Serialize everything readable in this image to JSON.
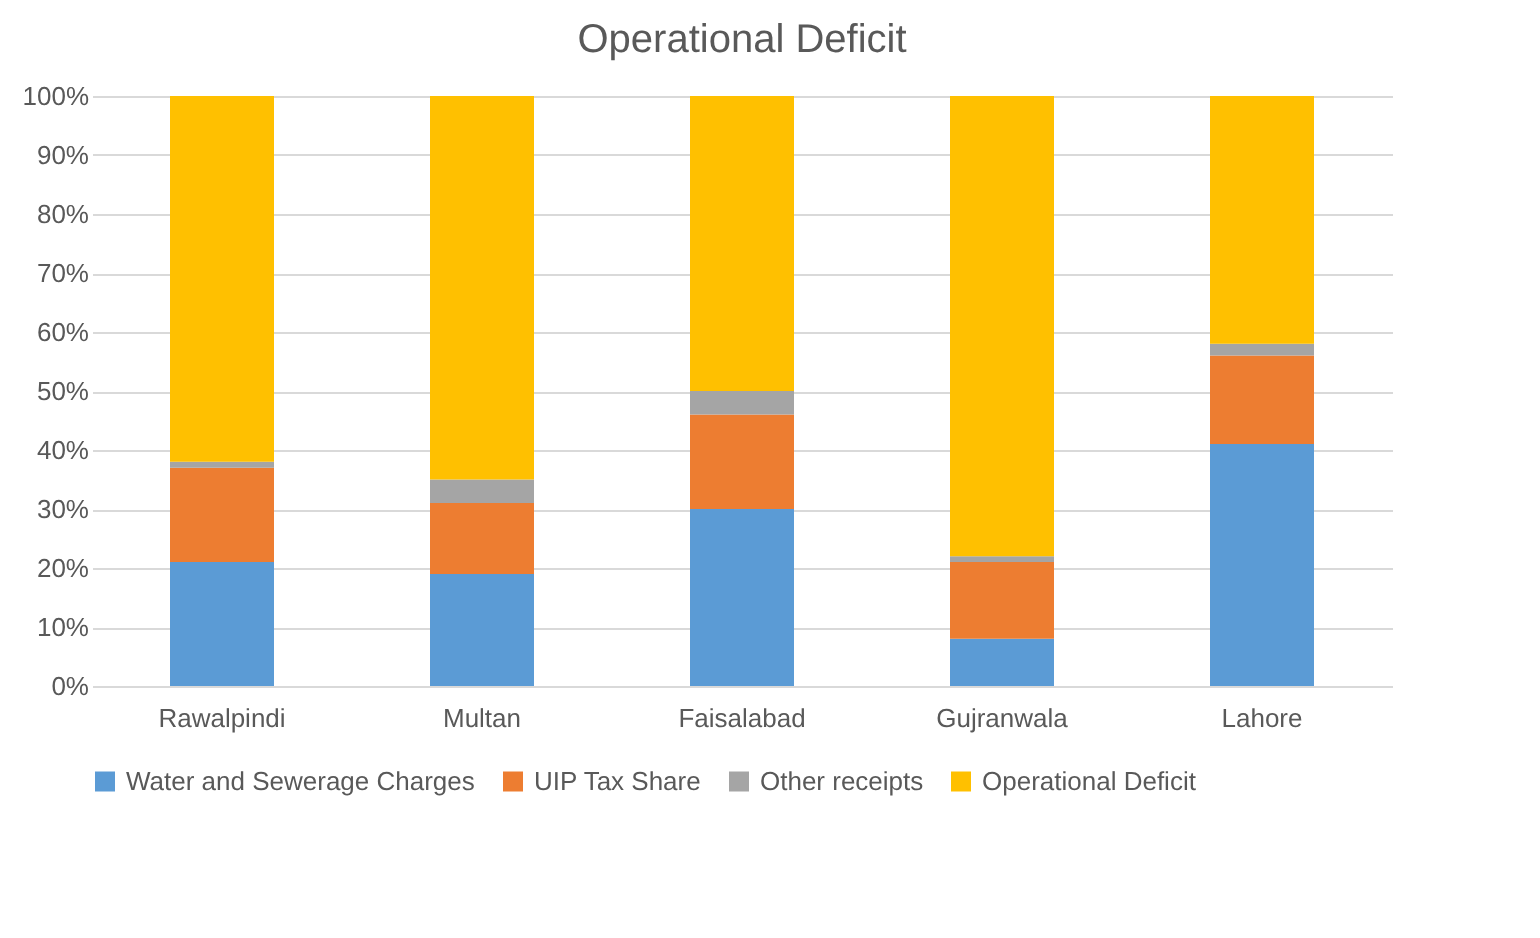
{
  "chart_data": {
    "type": "bar",
    "title": "Operational Deficit",
    "stacked": true,
    "categories": [
      "Rawalpindi",
      "Multan",
      "Faisalabad",
      "Gujranwala",
      "Lahore"
    ],
    "series": [
      {
        "name": "Water and Sewerage Charges",
        "color": "#5b9bd5",
        "values": [
          21,
          19,
          30,
          8,
          41
        ]
      },
      {
        "name": "UIP Tax Share",
        "color": "#ed7d31",
        "values": [
          16,
          12,
          16,
          13,
          15
        ]
      },
      {
        "name": "Other receipts",
        "color": "#a5a5a5",
        "values": [
          1,
          4,
          4,
          1,
          2
        ]
      },
      {
        "name": "Operational Deficit",
        "color": "#ffc000",
        "values": [
          62,
          65,
          50,
          78,
          42
        ]
      }
    ],
    "ylim": [
      0,
      100
    ],
    "yticks": [
      {
        "value": 0,
        "label": "0%"
      },
      {
        "value": 10,
        "label": "10%"
      },
      {
        "value": 20,
        "label": "20%"
      },
      {
        "value": 30,
        "label": "30%"
      },
      {
        "value": 40,
        "label": "40%"
      },
      {
        "value": 50,
        "label": "50%"
      },
      {
        "value": 60,
        "label": "60%"
      },
      {
        "value": 70,
        "label": "70%"
      },
      {
        "value": 80,
        "label": "80%"
      },
      {
        "value": 90,
        "label": "90%"
      },
      {
        "value": 100,
        "label": "100%"
      }
    ],
    "grid": "y",
    "legend": "bottom"
  }
}
